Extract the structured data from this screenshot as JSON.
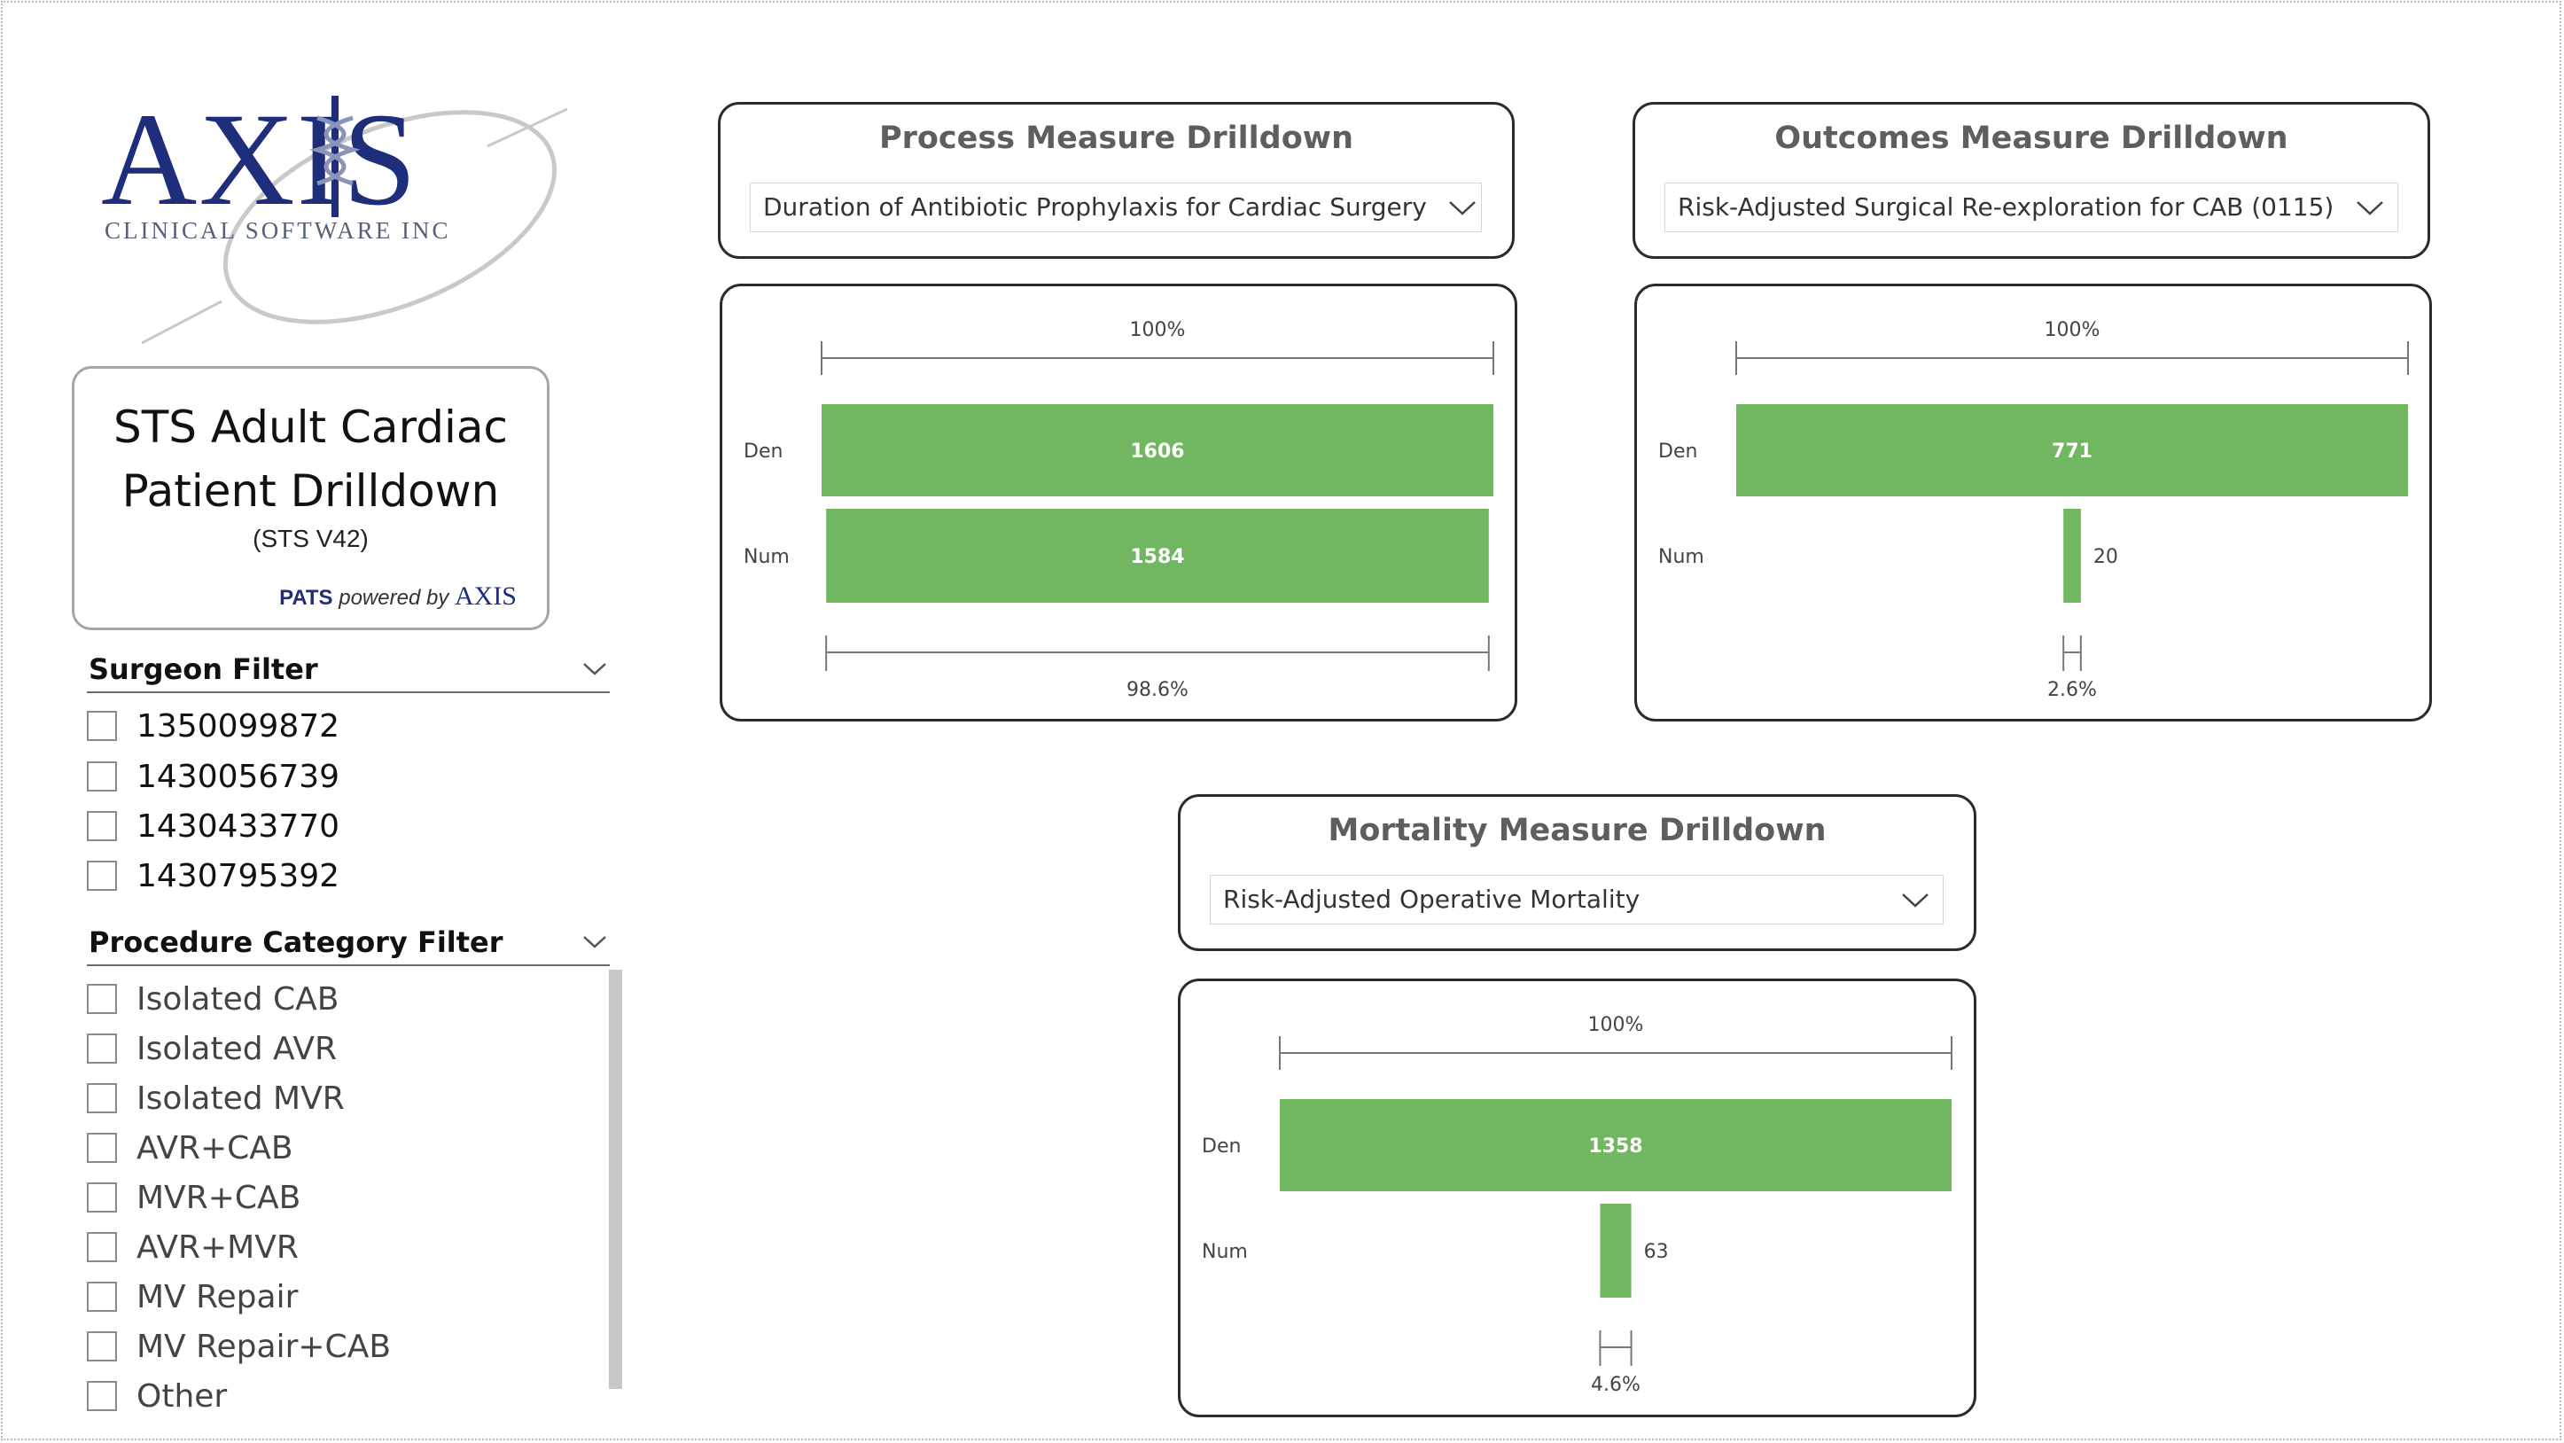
{
  "logo": {
    "word": "AXIS",
    "subtitle": "CLINICAL SOFTWARE INC"
  },
  "title_card": {
    "line1": "STS Adult Cardiac",
    "line2": "Patient Drilldown",
    "version": "(STS V42)",
    "pats": "PATS",
    "powered_by": "powered by",
    "axis": "AXIS"
  },
  "surgeon_filter": {
    "title": "Surgeon Filter",
    "options": [
      "1350099872",
      "1430056739",
      "1430433770",
      "1430795392"
    ]
  },
  "procedure_filter": {
    "title": "Procedure Category Filter",
    "options": [
      "Isolated CAB",
      "Isolated AVR",
      "Isolated MVR",
      "AVR+CAB",
      "MVR+CAB",
      "AVR+MVR",
      "MV Repair",
      "MV Repair+CAB",
      "Other"
    ]
  },
  "process": {
    "title": "Process Measure Drilldown",
    "selected": "Duration of Antibiotic Prophylaxis for Cardiac Surgery Pa..."
  },
  "outcomes": {
    "title": "Outcomes Measure Drilldown",
    "selected": "Risk-Adjusted Surgical Re-exploration for CAB (0115)"
  },
  "mortality": {
    "title": "Mortality Measure Drilldown",
    "selected": "Risk-Adjusted Operative Mortality"
  },
  "colors": {
    "bar": "#71b761",
    "card_border": "#2b2b2b",
    "title_gray": "#605e5c",
    "logo_blue": "#1f2e7a"
  },
  "chart_data": [
    {
      "type": "bar",
      "chart": "process-funnel",
      "categories": [
        "Den",
        "Num"
      ],
      "values": [
        1606,
        1584
      ],
      "top_label": "100%",
      "bottom_label": "98.6%"
    },
    {
      "type": "bar",
      "chart": "outcomes-funnel",
      "categories": [
        "Den",
        "Num"
      ],
      "values": [
        771,
        20
      ],
      "top_label": "100%",
      "bottom_label": "2.6%"
    },
    {
      "type": "bar",
      "chart": "mortality-funnel",
      "categories": [
        "Den",
        "Num"
      ],
      "values": [
        1358,
        63
      ],
      "top_label": "100%",
      "bottom_label": "4.6%"
    }
  ]
}
